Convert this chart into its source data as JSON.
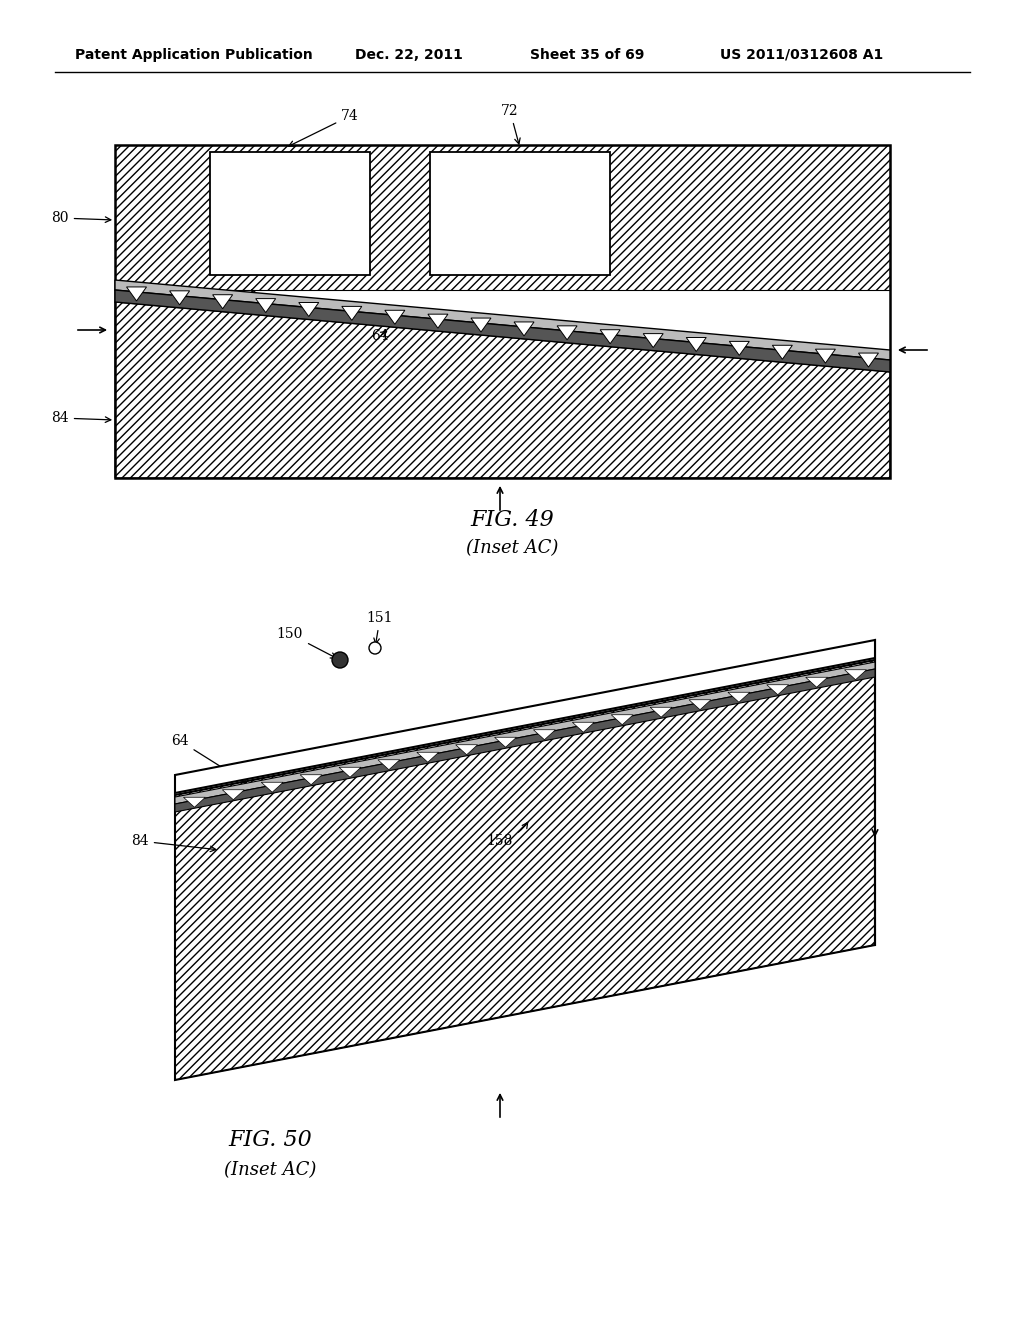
{
  "bg_color": "#ffffff",
  "header_text": "Patent Application Publication",
  "header_date": "Dec. 22, 2011",
  "header_sheet": "Sheet 35 of 69",
  "header_patent": "US 2011/0312608 A1",
  "fig49_caption": "FIG. 49",
  "fig49_sub": "(Inset AC)",
  "fig50_caption": "FIG. 50",
  "fig50_sub": "(Inset AC)"
}
